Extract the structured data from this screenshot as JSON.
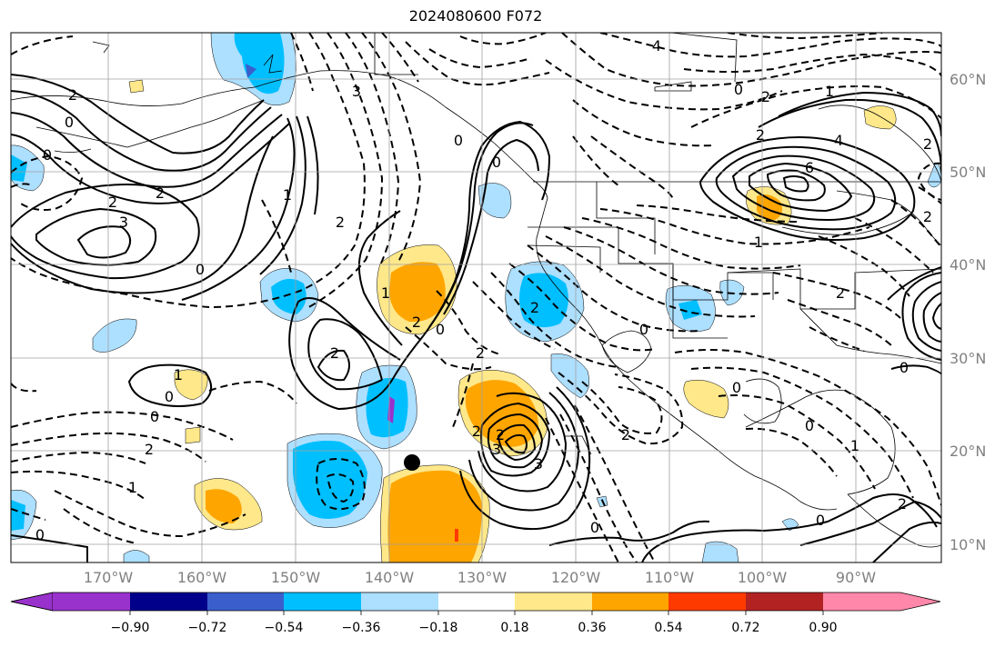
{
  "title": "2024080600 F072",
  "lat_labels": [
    "60°N",
    "50°N",
    "40°N",
    "30°N",
    "20°N",
    "10°N"
  ],
  "lon_labels": [
    "170°W",
    "160°W",
    "150°W",
    "140°W",
    "130°W",
    "120°W",
    "110°W",
    "100°W",
    "90°W"
  ],
  "contour_labels": [
    "4",
    "3",
    "2",
    "2",
    "0",
    "1",
    "0",
    "2",
    "2",
    "3",
    "1",
    "0",
    "2",
    "0",
    "1",
    "0",
    "0",
    "2",
    "1",
    "0",
    "2",
    "2",
    "0",
    "2",
    "0",
    "2",
    "3",
    "2",
    "2",
    "0",
    "0",
    "2",
    "3",
    "2",
    "4",
    "6",
    "2",
    "1",
    "0",
    "2",
    "0",
    "0",
    "2",
    "1",
    "0",
    "1",
    "2",
    "0"
  ],
  "colorbar": {
    "ticks": [
      "−0.90",
      "−0.72",
      "−0.54",
      "−0.36",
      "−0.18",
      "0.18",
      "0.36",
      "0.54",
      "0.72",
      "0.90"
    ],
    "colors": [
      "#9932cc",
      "#00008b",
      "#3a5fcd",
      "#00bfff",
      "#addfff",
      "#ffffff",
      "#ffe88a",
      "#ffa500",
      "#ff3a00",
      "#b22222",
      "#ff88aa"
    ]
  },
  "marker": "storm-center-dot"
}
